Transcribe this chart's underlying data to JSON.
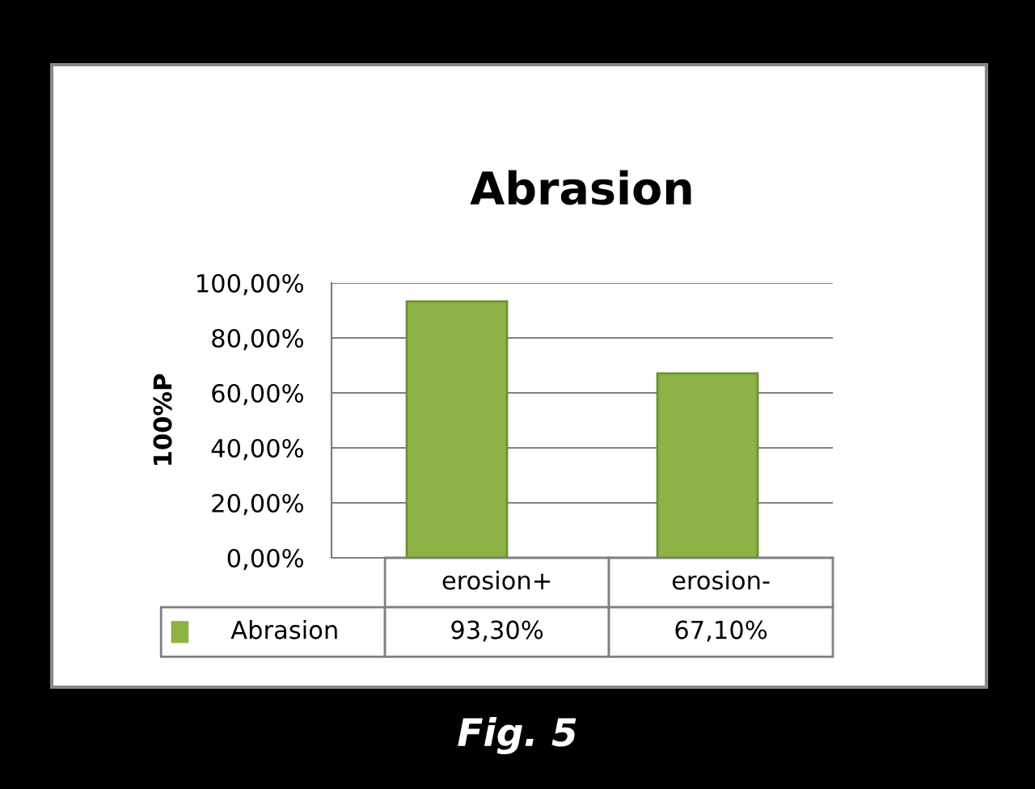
{
  "chart_data": {
    "type": "bar",
    "title": "Abrasion",
    "ylabel": "100%P",
    "categories": [
      "erosion+",
      "erosion-"
    ],
    "series": [
      {
        "name": "Abrasion",
        "color": "#8db346",
        "values": [
          93.3,
          67.1
        ],
        "value_labels": [
          "93,30%",
          "67,10%"
        ]
      }
    ],
    "ylim": [
      0,
      100
    ],
    "yticks": [
      {
        "value": 0,
        "label": "0,00%"
      },
      {
        "value": 20,
        "label": "20,00%"
      },
      {
        "value": 40,
        "label": "40,00%"
      },
      {
        "value": 60,
        "label": "60,00%"
      },
      {
        "value": 80,
        "label": "80,00%"
      },
      {
        "value": 100,
        "label": "100,00%"
      }
    ],
    "grid": "y",
    "annotations": [
      "Fig. 5"
    ]
  }
}
